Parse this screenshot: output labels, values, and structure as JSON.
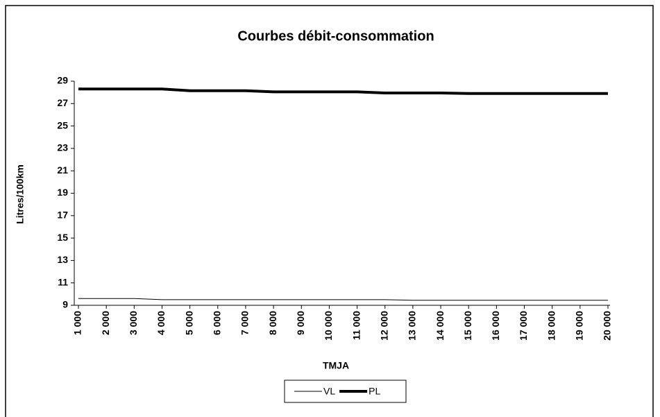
{
  "chart_data": {
    "type": "line",
    "title": "Courbes débit-consommation",
    "x_label": "TMJA",
    "y_label": "Litres/100km",
    "categories": [
      "1 000",
      "2 000",
      "3 000",
      "4 000",
      "5 000",
      "6 000",
      "7 000",
      "8 000",
      "9 000",
      "10 000",
      "11 000",
      "12 000",
      "13 000",
      "14 000",
      "15 000",
      "16 000",
      "17 000",
      "18 000",
      "19 000",
      "20 000"
    ],
    "series": [
      {
        "name": "VL",
        "color": "#000000",
        "width": 1,
        "values": [
          9.6,
          9.6,
          9.6,
          9.5,
          9.5,
          9.5,
          9.5,
          9.5,
          9.5,
          9.5,
          9.5,
          9.5,
          9.45,
          9.45,
          9.45,
          9.45,
          9.45,
          9.45,
          9.45,
          9.45
        ]
      },
      {
        "name": "PL",
        "color": "#000000",
        "width": 4,
        "values": [
          28.3,
          28.3,
          28.3,
          28.3,
          28.15,
          28.15,
          28.15,
          28.05,
          28.05,
          28.05,
          28.05,
          27.95,
          27.95,
          27.95,
          27.9,
          27.9,
          27.9,
          27.9,
          27.9,
          27.9
        ]
      }
    ],
    "ylim": [
      9,
      29
    ],
    "yticks": [
      9,
      11,
      13,
      15,
      17,
      19,
      21,
      23,
      25,
      27,
      29
    ],
    "grid": false,
    "legend": "bottom"
  }
}
